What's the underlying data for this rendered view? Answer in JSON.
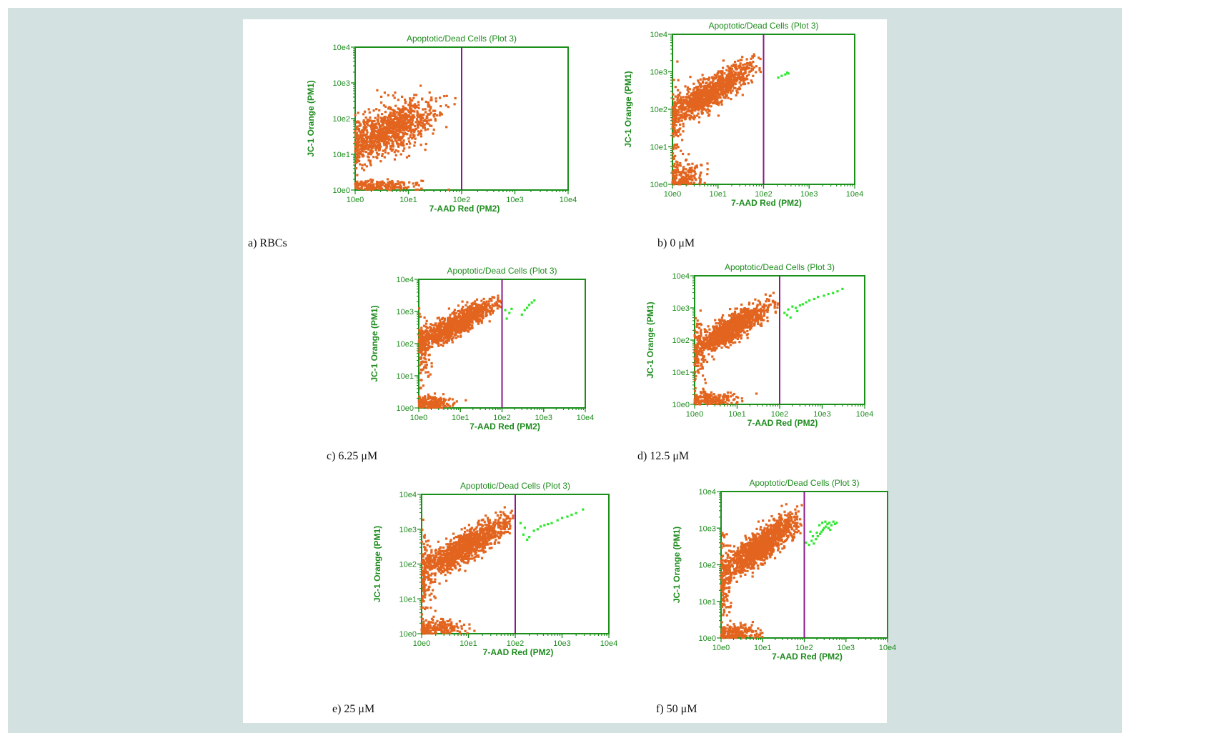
{
  "colors": {
    "panel_bg": "#d3e1e0",
    "axis": "#1a8f1a",
    "text_green": "#1e8c1e",
    "gate": "#8b1a8b",
    "live": "#e2641e",
    "dead": "#2ee82e"
  },
  "chart_data": [
    {
      "id": "a",
      "type": "scatter",
      "caption": "a) RBCs",
      "title": "Apoptotic/Dead Cells (Plot 3)",
      "xlabel": "7-AAD Red (PM2)",
      "ylabel": "JC-1 Orange (PM1)",
      "x_scale": "log",
      "y_scale": "log",
      "xlim": [
        1,
        10000
      ],
      "ylim": [
        1,
        10000
      ],
      "xticks": [
        "10e0",
        "10e1",
        "10e2",
        "10e3",
        "10e4"
      ],
      "yticks": [
        "10e0",
        "10e1",
        "10e2",
        "10e3",
        "10e4"
      ],
      "gate_x": 100,
      "grid": false,
      "series": [
        {
          "cluster": {
            "cx": [
              0.75,
              0.4
            ],
            "cy": [
              1.8,
              0.35
            ],
            "n": 800,
            "rho": 0.55,
            "xmin": 0
          }
        },
        {
          "cluster": {
            "cx": [
              0.3,
              0.3
            ],
            "cy": [
              1.35,
              0.35
            ],
            "n": 260,
            "rho": 0.3,
            "xmin": 0
          }
        },
        {
          "cluster": {
            "cx": [
              0.5,
              0.35
            ],
            "cy": [
              0.12,
              0.08
            ],
            "n": 200,
            "rho": 0,
            "xmin": 0,
            "ymin": 0
          }
        },
        {
          "points": [
            [
              5.5,
              380
            ],
            [
              4.2,
              450
            ],
            [
              3.6,
              530
            ],
            [
              3.1,
              410
            ],
            [
              2.6,
              620
            ]
          ]
        }
      ]
    },
    {
      "id": "b",
      "type": "scatter",
      "caption": "b) 0 μM",
      "title": "Apoptotic/Dead Cells (Plot 3)",
      "xlabel": "7-AAD Red (PM2)",
      "ylabel": "JC-1 Orange (PM1)",
      "x_scale": "log",
      "y_scale": "log",
      "xlim": [
        1,
        10000
      ],
      "ylim": [
        1,
        10000
      ],
      "xticks": [
        "10e0",
        "10e1",
        "10e2",
        "10e3",
        "10e4"
      ],
      "yticks": [
        "10e0",
        "10e1",
        "10e2",
        "10e3",
        "10e4"
      ],
      "gate_x": 100,
      "grid": false,
      "series": [
        {
          "cluster": {
            "cx": [
              0.85,
              0.45
            ],
            "cy": [
              2.45,
              0.38
            ],
            "n": 1100,
            "rho": 0.85,
            "xmin": 0,
            "xmax": 1.95
          }
        },
        {
          "cluster": {
            "cx": [
              0.25,
              0.2
            ],
            "cy": [
              0.2,
              0.2
            ],
            "n": 180,
            "rho": 0,
            "xmin": 0,
            "ymin": 0
          }
        },
        {
          "cluster": {
            "cx": [
              0.08,
              0.08
            ],
            "cy": [
              1.6,
              0.6
            ],
            "n": 90,
            "rho": 0,
            "xmin": 0
          }
        },
        {
          "points": [
            [
              210,
              700
            ],
            [
              250,
              780
            ],
            [
              300,
              850
            ],
            [
              330,
              950
            ],
            [
              350,
              900
            ]
          ],
          "color": "dead"
        }
      ]
    },
    {
      "id": "c",
      "type": "scatter",
      "caption": "c) 6.25 μM",
      "title": "Apoptotic/Dead Cells (Plot 3)",
      "xlabel": "7-AAD Red (PM2)",
      "ylabel": "JC-1 Orange (PM1)",
      "x_scale": "log",
      "y_scale": "log",
      "xlim": [
        1,
        10000
      ],
      "ylim": [
        1,
        10000
      ],
      "xticks": [
        "10e0",
        "10e1",
        "10e2",
        "10e3",
        "10e4"
      ],
      "yticks": [
        "10e0",
        "10e1",
        "10e2",
        "10e3",
        "10e4"
      ],
      "gate_x": 100,
      "grid": false,
      "series": [
        {
          "cluster": {
            "cx": [
              0.9,
              0.45
            ],
            "cy": [
              2.6,
              0.35
            ],
            "n": 1000,
            "rho": 0.85,
            "xmin": 0,
            "xmax": 1.98
          }
        },
        {
          "cluster": {
            "cx": [
              0.3,
              0.25
            ],
            "cy": [
              0.15,
              0.12
            ],
            "n": 170,
            "rho": 0,
            "xmin": 0,
            "ymin": 0
          }
        },
        {
          "cluster": {
            "cx": [
              0.1,
              0.1
            ],
            "cy": [
              1.7,
              0.6
            ],
            "n": 100,
            "rho": 0,
            "xmin": 0
          }
        },
        {
          "points": [
            [
              120,
              1100
            ],
            [
              150,
              900
            ],
            [
              130,
              600
            ],
            [
              170,
              1200
            ],
            [
              300,
              800
            ],
            [
              350,
              1100
            ],
            [
              400,
              1300
            ],
            [
              450,
              1600
            ],
            [
              520,
              1900
            ],
            [
              600,
              2200
            ]
          ],
          "color": "dead"
        }
      ]
    },
    {
      "id": "d",
      "type": "scatter",
      "caption": "d) 12.5 μM",
      "title": "Apoptotic/Dead Cells (Plot 3)",
      "xlabel": "7-AAD Red (PM2)",
      "ylabel": "JC-1 Orange (PM1)",
      "x_scale": "log",
      "y_scale": "log",
      "xlim": [
        1,
        10000
      ],
      "ylim": [
        1,
        10000
      ],
      "xticks": [
        "10e0",
        "10e1",
        "10e2",
        "10e3",
        "10e4"
      ],
      "yticks": [
        "10e0",
        "10e1",
        "10e2",
        "10e3",
        "10e4"
      ],
      "gate_x": 100,
      "grid": false,
      "series": [
        {
          "cluster": {
            "cx": [
              0.85,
              0.45
            ],
            "cy": [
              2.35,
              0.4
            ],
            "n": 1100,
            "rho": 0.85,
            "xmin": 0,
            "xmax": 1.98
          }
        },
        {
          "cluster": {
            "cx": [
              0.35,
              0.3
            ],
            "cy": [
              0.15,
              0.12
            ],
            "n": 180,
            "rho": 0,
            "xmin": 0,
            "ymin": 0
          }
        },
        {
          "cluster": {
            "cx": [
              0.1,
              0.1
            ],
            "cy": [
              1.5,
              0.6
            ],
            "n": 100,
            "rho": 0,
            "xmin": 0
          }
        },
        {
          "points": [
            [
              130,
              700
            ],
            [
              160,
              900
            ],
            [
              200,
              1100
            ],
            [
              240,
              1000
            ],
            [
              300,
              1200
            ],
            [
              350,
              1300
            ],
            [
              420,
              1500
            ],
            [
              500,
              1700
            ],
            [
              650,
              1900
            ],
            [
              800,
              2200
            ],
            [
              1100,
              2400
            ],
            [
              1400,
              2700
            ],
            [
              1800,
              2900
            ],
            [
              2300,
              3300
            ],
            [
              3000,
              3900
            ],
            [
              180,
              500
            ],
            [
              150,
              600
            ],
            [
              260,
              800
            ]
          ],
          "color": "dead"
        }
      ]
    },
    {
      "id": "e",
      "type": "scatter",
      "caption": "e) 25 μM",
      "title": "Apoptotic/Dead Cells (Plot 3)",
      "xlabel": "7-AAD Red (PM2)",
      "ylabel": "JC-1 Orange (PM1)",
      "x_scale": "log",
      "y_scale": "log",
      "xlim": [
        1,
        10000
      ],
      "ylim": [
        1,
        10000
      ],
      "xticks": [
        "10e0",
        "10e1",
        "10e2",
        "10e3",
        "10e4"
      ],
      "yticks": [
        "10e0",
        "10e1",
        "10e2",
        "10e3",
        "10e4"
      ],
      "gate_x": 100,
      "grid": false,
      "series": [
        {
          "cluster": {
            "cx": [
              0.95,
              0.45
            ],
            "cy": [
              2.5,
              0.4
            ],
            "n": 1200,
            "rho": 0.85,
            "xmin": 0,
            "xmax": 1.97
          }
        },
        {
          "cluster": {
            "cx": [
              0.35,
              0.3
            ],
            "cy": [
              0.15,
              0.12
            ],
            "n": 200,
            "rho": 0,
            "xmin": 0,
            "ymin": 0
          }
        },
        {
          "cluster": {
            "cx": [
              0.1,
              0.1
            ],
            "cy": [
              1.6,
              0.6
            ],
            "n": 110,
            "rho": 0,
            "xmin": 0
          }
        },
        {
          "points": [
            [
              130,
              1500
            ],
            [
              160,
              1100
            ],
            [
              150,
              700
            ],
            [
              180,
              500
            ],
            [
              200,
              600
            ],
            [
              250,
              900
            ],
            [
              300,
              1000
            ],
            [
              350,
              1200
            ],
            [
              420,
              1300
            ],
            [
              500,
              1400
            ],
            [
              600,
              1500
            ],
            [
              800,
              1800
            ],
            [
              1000,
              2100
            ],
            [
              1300,
              2300
            ],
            [
              1600,
              2600
            ],
            [
              2000,
              2900
            ],
            [
              2800,
              3700
            ]
          ],
          "color": "dead"
        }
      ]
    },
    {
      "id": "f",
      "type": "scatter",
      "caption": "f) 50 μM",
      "title": "Apoptotic/Dead Cells (Plot 3)",
      "xlabel": "7-AAD Red (PM2)",
      "ylabel": "JC-1 Orange (PM1)",
      "x_scale": "log",
      "y_scale": "log",
      "xlim": [
        1,
        10000
      ],
      "ylim": [
        1,
        10000
      ],
      "xticks": [
        "10e0",
        "10e1",
        "10e2",
        "10e3",
        "10e4"
      ],
      "yticks": [
        "10e0",
        "10e1",
        "10e2",
        "10e3",
        "10e4"
      ],
      "gate_x": 100,
      "grid": false,
      "series": [
        {
          "cluster": {
            "cx": [
              0.95,
              0.45
            ],
            "cy": [
              2.5,
              0.42
            ],
            "n": 1300,
            "rho": 0.85,
            "xmin": 0,
            "xmax": 1.98
          }
        },
        {
          "cluster": {
            "cx": [
              0.35,
              0.3
            ],
            "cy": [
              0.15,
              0.12
            ],
            "n": 200,
            "rho": 0,
            "xmin": 0,
            "ymin": 0
          }
        },
        {
          "cluster": {
            "cx": [
              0.1,
              0.1
            ],
            "cy": [
              1.6,
              0.6
            ],
            "n": 120,
            "rho": 0,
            "xmin": 0
          }
        },
        {
          "points": [
            [
              110,
              400
            ],
            [
              130,
              350
            ],
            [
              150,
              450
            ],
            [
              170,
              380
            ],
            [
              190,
              500
            ],
            [
              210,
              600
            ],
            [
              240,
              700
            ],
            [
              260,
              800
            ],
            [
              280,
              900
            ],
            [
              300,
              1000
            ],
            [
              330,
              1100
            ],
            [
              360,
              1300
            ],
            [
              400,
              1400
            ],
            [
              450,
              1200
            ],
            [
              500,
              1500
            ],
            [
              550,
              1300
            ],
            [
              600,
              1400
            ],
            [
              230,
              1200
            ],
            [
              270,
              1400
            ],
            [
              320,
              1500
            ],
            [
              380,
              1000
            ],
            [
              420,
              900
            ],
            [
              160,
              600
            ],
            [
              140,
              800
            ],
            [
              200,
              750
            ]
          ],
          "color": "dead"
        }
      ]
    }
  ]
}
